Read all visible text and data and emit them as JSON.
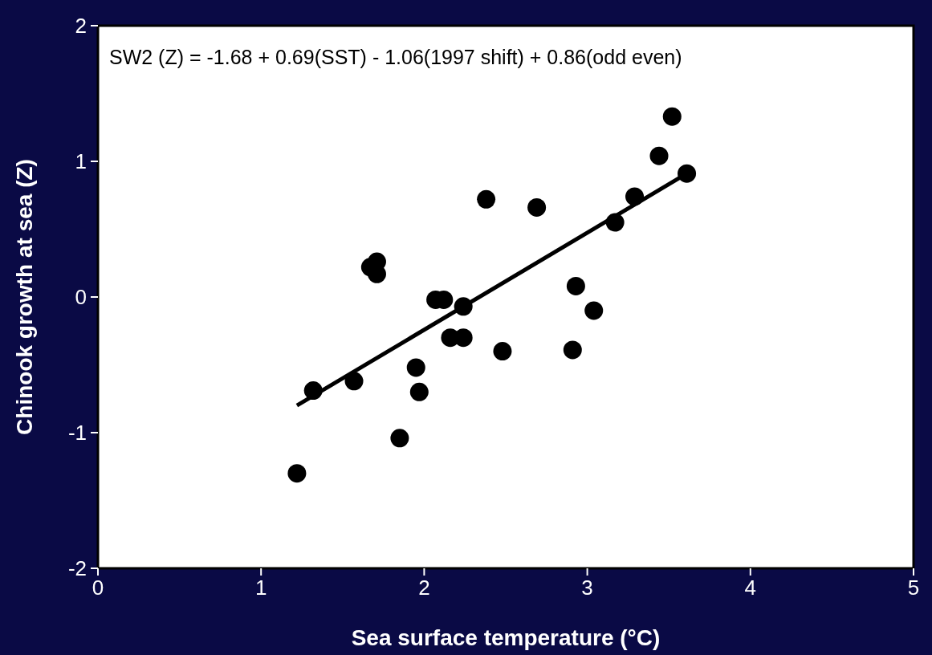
{
  "chart_data": {
    "type": "scatter",
    "xlabel": "Sea surface temperature (°C)",
    "ylabel": "Chinook growth at sea (Z)",
    "annotations": [
      "SW2 (Z) = -1.68 + 0.69(SST) - 1.06(1997 shift) + 0.86(odd even)"
    ],
    "xlim": [
      0,
      5
    ],
    "ylim": [
      -2,
      2
    ],
    "xticks": [
      0,
      1,
      2,
      3,
      4,
      5
    ],
    "yticks": [
      -2,
      -1,
      0,
      1,
      2
    ],
    "grid": false,
    "series": [
      {
        "marker": "circle",
        "color": "#000000",
        "x": [
          1.22,
          1.32,
          1.57,
          1.67,
          1.71,
          1.71,
          1.85,
          1.95,
          1.97,
          2.07,
          2.12,
          2.24,
          2.16,
          2.24,
          2.38,
          2.48,
          2.69,
          2.91,
          2.93,
          3.04,
          3.17,
          3.29,
          3.44,
          3.52,
          3.61
        ],
        "values": [
          -1.3,
          -0.69,
          -0.62,
          0.22,
          0.26,
          0.17,
          -1.04,
          -0.52,
          -0.7,
          -0.02,
          -0.02,
          -0.07,
          -0.3,
          -0.3,
          0.72,
          -0.4,
          0.66,
          -0.39,
          0.08,
          -0.1,
          0.55,
          0.74,
          1.04,
          1.33,
          0.91
        ]
      },
      {
        "type": "line",
        "color": "#000000",
        "x": [
          1.22,
          3.61
        ],
        "values": [
          -0.8,
          0.91
        ]
      }
    ]
  }
}
